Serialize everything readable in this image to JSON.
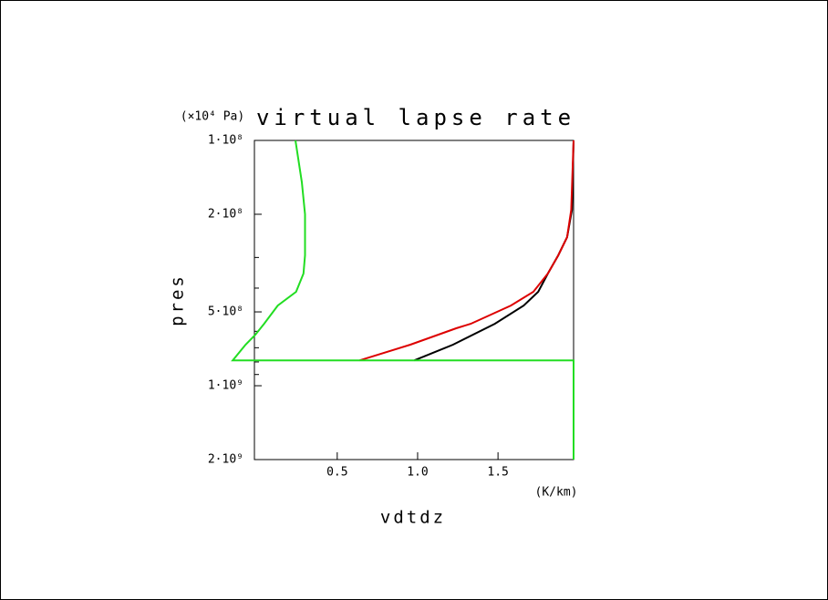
{
  "chart_data": {
    "type": "line",
    "title": "virtual lapse rate",
    "x_label": "vdtdz",
    "x_units": "(K/km)",
    "y_label": "pres",
    "y_units": "(×10⁴ Pa)",
    "xlim": [
      -0.015,
      1.97
    ],
    "xticks": [
      0.5,
      {
        "value": 1,
        "label": "1.0"
      },
      1.5
    ],
    "ylim": [
      100000000,
      2000000000
    ],
    "ylog": true,
    "yinvert": true,
    "yticks": [
      {
        "value": 100000000,
        "label": "1·10⁸"
      },
      {
        "value": 200000000,
        "label": "2·10⁸"
      },
      {
        "value": 500000000,
        "label": "5·10⁸"
      },
      {
        "value": 1000000000,
        "label": "1·10⁹"
      },
      {
        "value": 2000000000,
        "label": "2·10⁹"
      }
    ],
    "yminor_ticks": [
      300000000,
      400000000,
      600000000,
      700000000,
      800000000,
      900000000
    ],
    "series": [
      {
        "color": "#000000",
        "values": [
          1.97,
          1.96,
          1.93,
          1.875,
          1.81,
          1.75,
          1.66,
          1.48,
          1.22,
          0.98
        ],
        "pressure": [
          100000000,
          192000000,
          248000000,
          294000000,
          349000000,
          414000000,
          471000000,
          559000000,
          680000000,
          788000000
        ]
      },
      {
        "color": "#dd0000",
        "values": [
          1.97,
          1.955,
          1.93,
          1.875,
          1.81,
          1.72,
          1.58,
          1.33,
          1.24,
          0.955,
          0.64
        ],
        "pressure": [
          100000000,
          192000000,
          248000000,
          294000000,
          349000000,
          414000000,
          471000000,
          559000000,
          583000000,
          680000000,
          788000000
        ]
      },
      {
        "color": "#22dd22",
        "values": [
          0.24,
          0.28,
          0.3,
          0.3,
          0.29,
          0.244,
          0.13,
          0.045,
          -0.01,
          -0.07,
          -0.15,
          1.97,
          1.97
        ],
        "pressure": [
          100000000,
          148000000,
          200000000,
          294000000,
          349000000,
          414000000,
          471000000,
          559000000,
          620000000,
          680000000,
          788000000,
          788000000,
          2000000000
        ]
      }
    ]
  }
}
